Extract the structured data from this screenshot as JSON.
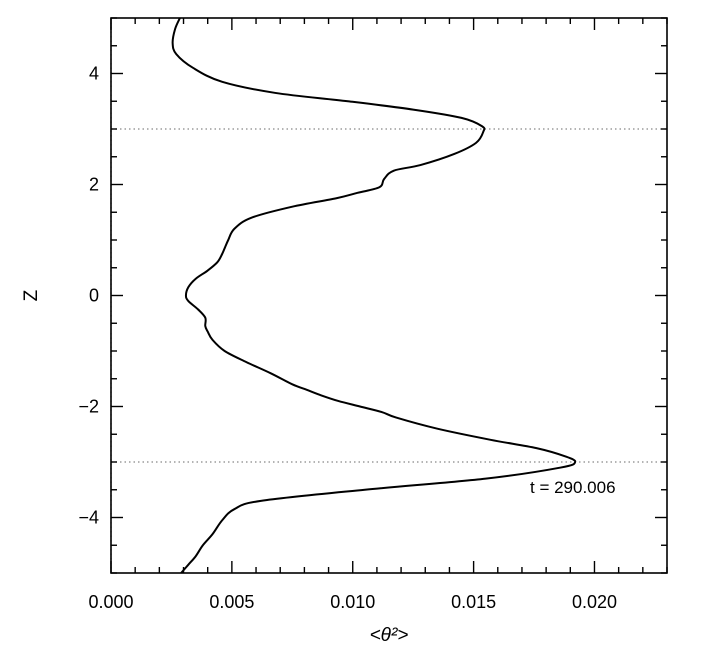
{
  "chart_data": {
    "type": "line",
    "xlabel": "<θ²>",
    "ylabel": "Z",
    "xlim": [
      0.0,
      0.023
    ],
    "ylim": [
      -5,
      5
    ],
    "x_ticks": [
      {
        "value": 0.0,
        "label": "0.000"
      },
      {
        "value": 0.005,
        "label": "0.005"
      },
      {
        "value": 0.01,
        "label": "0.010"
      },
      {
        "value": 0.015,
        "label": "0.015"
      },
      {
        "value": 0.02,
        "label": "0.020"
      }
    ],
    "y_ticks": [
      {
        "value": -4,
        "label": "−4"
      },
      {
        "value": -2,
        "label": "−2"
      },
      {
        "value": 0,
        "label": "0"
      },
      {
        "value": 2,
        "label": "2"
      },
      {
        "value": 4,
        "label": "4"
      }
    ],
    "reference_lines": {
      "x": [
        0.0
      ],
      "y": [
        3.0,
        -3.0
      ]
    },
    "annotation": "t = 290.006",
    "grid": false,
    "series": [
      {
        "x": [
          0.00285,
          0.00265,
          0.00255,
          0.0027,
          0.0034,
          0.0046,
          0.0068,
          0.0098,
          0.0125,
          0.0145,
          0.01535,
          0.0154,
          0.0151,
          0.0142,
          0.0128,
          0.0117,
          0.0113,
          0.0111,
          0.0102,
          0.0093,
          0.0075,
          0.0058,
          0.0051,
          0.00485,
          0.0047,
          0.0046,
          0.0044,
          0.004,
          0.0035,
          0.0032,
          0.0031,
          0.0032,
          0.0036,
          0.0039,
          0.0039,
          0.004,
          0.0042,
          0.0047,
          0.0056,
          0.0066,
          0.0075,
          0.0081,
          0.0087,
          0.0094,
          0.0103,
          0.0112,
          0.0118,
          0.0135,
          0.0157,
          0.0176,
          0.0188,
          0.0192,
          0.0186,
          0.0155,
          0.0105,
          0.0062,
          0.0051,
          0.0046,
          0.0042,
          0.0038,
          0.0035,
          0.0032,
          0.0029
        ],
        "y": [
          5.0,
          4.8,
          4.55,
          4.35,
          4.1,
          3.85,
          3.65,
          3.5,
          3.35,
          3.2,
          3.05,
          2.95,
          2.75,
          2.55,
          2.35,
          2.25,
          2.1,
          1.95,
          1.85,
          1.75,
          1.6,
          1.4,
          1.2,
          1.0,
          0.85,
          0.75,
          0.6,
          0.45,
          0.3,
          0.15,
          0.0,
          -0.1,
          -0.25,
          -0.4,
          -0.55,
          -0.65,
          -0.8,
          -1.0,
          -1.2,
          -1.4,
          -1.6,
          -1.7,
          -1.8,
          -1.9,
          -2.0,
          -2.1,
          -2.2,
          -2.4,
          -2.6,
          -2.75,
          -2.9,
          -3.0,
          -3.1,
          -3.3,
          -3.5,
          -3.7,
          -3.85,
          -4.05,
          -4.3,
          -4.5,
          -4.7,
          -4.85,
          -5.0
        ]
      }
    ]
  }
}
